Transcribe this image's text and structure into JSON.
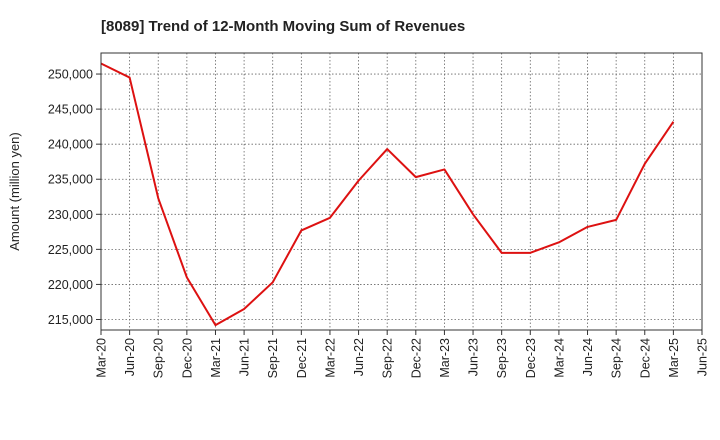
{
  "chart_data": {
    "type": "line",
    "title": "[8089]  Trend of 12-Month Moving Sum of Revenues",
    "xlabel": "",
    "ylabel": "Amount (million yen)",
    "ylim": [
      213500,
      253000
    ],
    "grid": true,
    "legend": "none",
    "line_color": "#dd1111",
    "x_ticks": [
      "Mar-20",
      "Jun-20",
      "Sep-20",
      "Dec-20",
      "Mar-21",
      "Jun-21",
      "Sep-21",
      "Dec-21",
      "Mar-22",
      "Jun-22",
      "Sep-22",
      "Dec-22",
      "Mar-23",
      "Jun-23",
      "Sep-23",
      "Dec-23",
      "Mar-24",
      "Jun-24",
      "Sep-24",
      "Dec-24",
      "Mar-25",
      "Jun-25"
    ],
    "y_ticks": [
      215000,
      220000,
      225000,
      230000,
      235000,
      240000,
      245000,
      250000
    ],
    "y_tick_labels": [
      "215,000",
      "220,000",
      "225,000",
      "230,000",
      "235,000",
      "240,000",
      "245,000",
      "250,000"
    ],
    "series": [
      {
        "x": [
          "Mar-20",
          "Jun-20",
          "Sep-20",
          "Dec-20",
          "Mar-21",
          "Jun-21",
          "Sep-21",
          "Dec-21",
          "Mar-22",
          "Jun-22",
          "Sep-22",
          "Dec-22",
          "Mar-23",
          "Jun-23",
          "Sep-23",
          "Dec-23",
          "Mar-24",
          "Jun-24",
          "Sep-24",
          "Dec-24",
          "Mar-25"
        ],
        "values": [
          251500,
          249500,
          232300,
          221000,
          214200,
          216500,
          220300,
          227700,
          229500,
          234800,
          239300,
          235300,
          236400,
          230000,
          224500,
          224500,
          226000,
          228200,
          229200,
          237200,
          243200
        ]
      }
    ]
  }
}
